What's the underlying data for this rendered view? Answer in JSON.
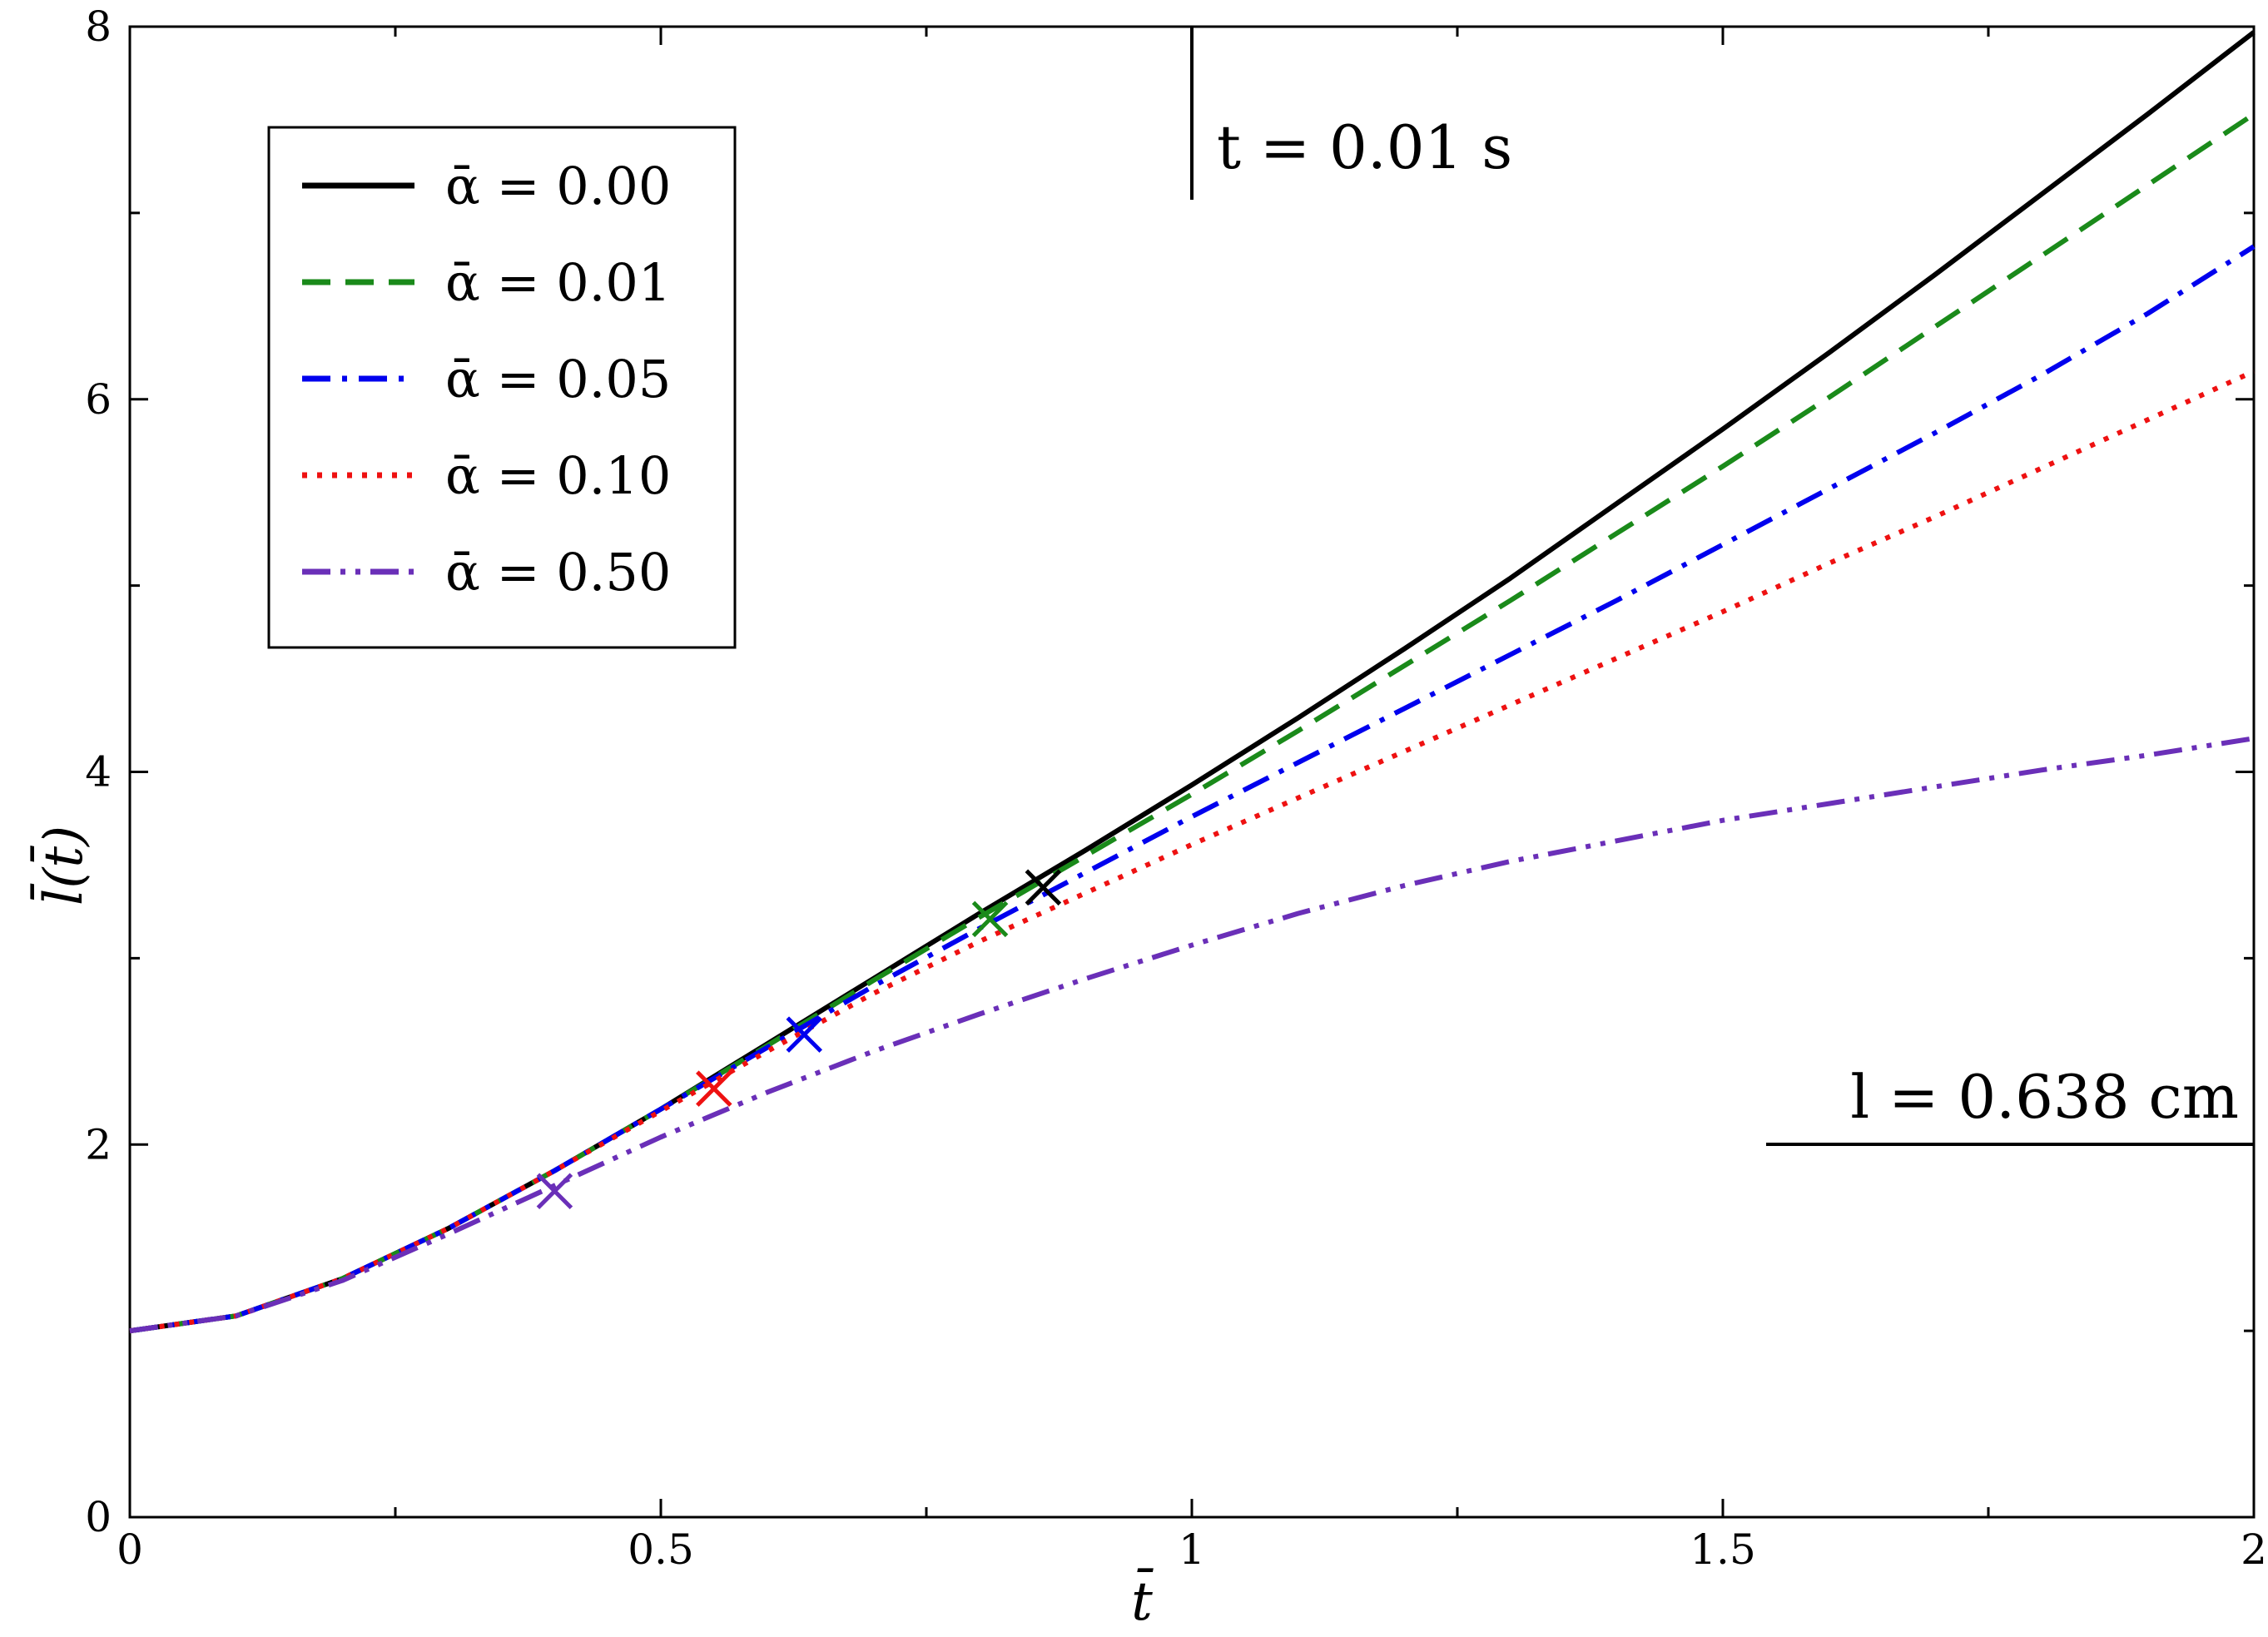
{
  "chart_data": {
    "type": "line",
    "xlabel": "t̄",
    "ylabel": "l̄(t̄)",
    "xlim": [
      0,
      2
    ],
    "ylim": [
      0,
      8
    ],
    "x_ticks": [
      0,
      0.5,
      1,
      1.5,
      2
    ],
    "x_tick_labels": [
      "0",
      "0.5",
      "1",
      "1.5",
      "2"
    ],
    "x_minor_ticks": [
      0.25,
      0.75,
      1.25,
      1.75
    ],
    "y_ticks": [
      0,
      2,
      4,
      6,
      8
    ],
    "y_tick_labels": [
      "0",
      "2",
      "4",
      "6",
      "8"
    ],
    "y_minor_ticks": [
      1,
      3,
      5,
      7
    ],
    "grid": false,
    "legend_position": "top-left",
    "x": [
      0,
      0.1,
      0.2,
      0.3,
      0.4,
      0.5,
      0.6,
      0.7,
      0.8,
      0.9,
      1.0,
      1.1,
      1.2,
      1.3,
      1.4,
      1.5,
      1.6,
      1.7,
      1.8,
      1.9,
      2.0
    ],
    "series": [
      {
        "name": "ᾱ = 0.00",
        "color": "#000000",
        "dash": "solid",
        "values": [
          1.0,
          1.08,
          1.28,
          1.55,
          1.86,
          2.19,
          2.54,
          2.89,
          3.24,
          3.58,
          3.93,
          4.29,
          4.66,
          5.04,
          5.44,
          5.84,
          6.25,
          6.67,
          7.1,
          7.53,
          7.97
        ],
        "marker": {
          "x": 0.86,
          "y": 3.38
        }
      },
      {
        "name": "ᾱ = 0.01",
        "color": "#1a8a1a",
        "dash": "dashed",
        "values": [
          1.0,
          1.08,
          1.28,
          1.55,
          1.86,
          2.19,
          2.53,
          2.88,
          3.22,
          3.55,
          3.88,
          4.22,
          4.57,
          4.92,
          5.28,
          5.64,
          6.01,
          6.39,
          6.77,
          7.15,
          7.53
        ],
        "marker": {
          "x": 0.81,
          "y": 3.21
        }
      },
      {
        "name": "ᾱ = 0.05",
        "color": "#0000ee",
        "dash": "dash-dot",
        "values": [
          1.0,
          1.08,
          1.28,
          1.55,
          1.86,
          2.19,
          2.52,
          2.85,
          3.16,
          3.46,
          3.76,
          4.05,
          4.34,
          4.63,
          4.92,
          5.22,
          5.52,
          5.82,
          6.13,
          6.46,
          6.82
        ],
        "marker": {
          "x": 0.635,
          "y": 2.59
        }
      },
      {
        "name": "ᾱ = 0.10",
        "color": "#ee1111",
        "dash": "dotted",
        "values": [
          1.0,
          1.08,
          1.28,
          1.55,
          1.86,
          2.18,
          2.5,
          2.81,
          3.09,
          3.35,
          3.61,
          3.86,
          4.11,
          4.36,
          4.61,
          4.86,
          5.12,
          5.37,
          5.63,
          5.89,
          6.15
        ],
        "marker": {
          "x": 0.55,
          "y": 2.3
        }
      },
      {
        "name": "ᾱ = 0.50",
        "color": "#6a2fb8",
        "dash": "dash-dot-dot",
        "values": [
          1.0,
          1.08,
          1.27,
          1.52,
          1.78,
          2.04,
          2.28,
          2.5,
          2.7,
          2.89,
          3.07,
          3.24,
          3.39,
          3.52,
          3.63,
          3.74,
          3.83,
          3.92,
          4.01,
          4.09,
          4.18
        ],
        "marker": {
          "x": 0.4,
          "y": 1.75
        }
      }
    ],
    "annotations": {
      "time_label": "t = 0.01 s",
      "length_label": "l = 0.638 cm"
    }
  }
}
